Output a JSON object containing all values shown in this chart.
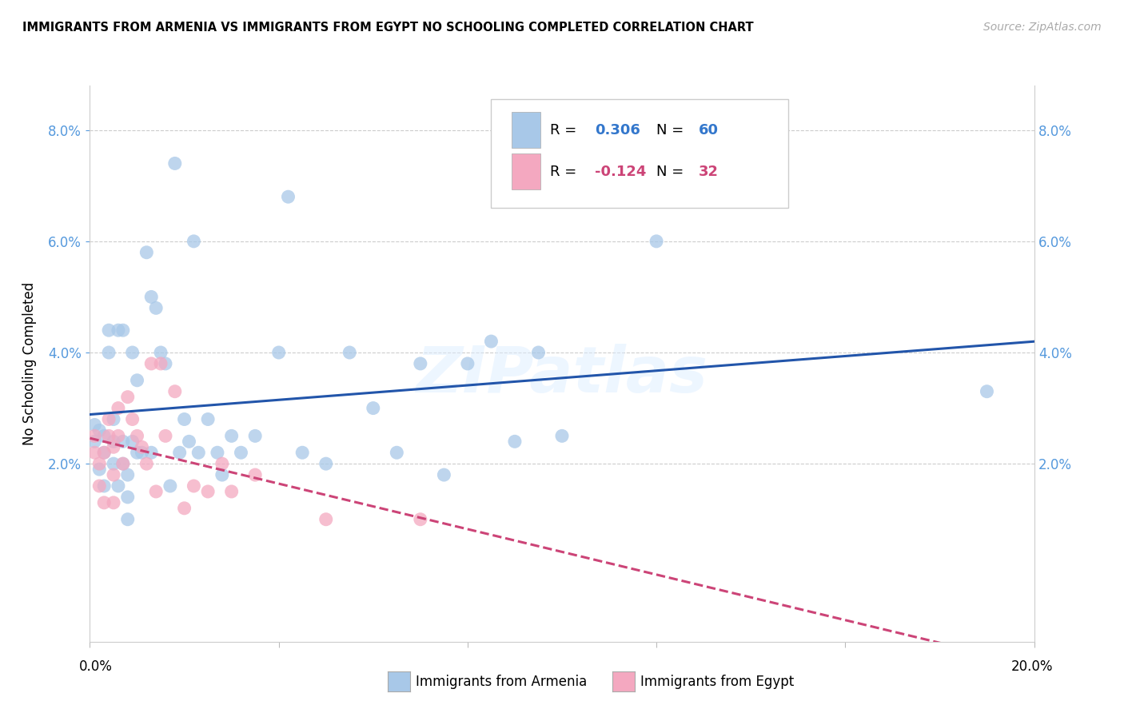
{
  "title": "IMMIGRANTS FROM ARMENIA VS IMMIGRANTS FROM EGYPT NO SCHOOLING COMPLETED CORRELATION CHART",
  "source": "Source: ZipAtlas.com",
  "ylabel": "No Schooling Completed",
  "legend_armenia": "Immigrants from Armenia",
  "legend_egypt": "Immigrants from Egypt",
  "R_armenia": 0.306,
  "N_armenia": 60,
  "R_egypt": -0.124,
  "N_egypt": 32,
  "xlim": [
    0.0,
    0.2
  ],
  "ylim": [
    -0.012,
    0.088
  ],
  "yticks": [
    0.02,
    0.04,
    0.06,
    0.08
  ],
  "ytick_labels": [
    "2.0%",
    "4.0%",
    "6.0%",
    "8.0%"
  ],
  "color_armenia": "#a8c8e8",
  "color_egypt": "#f4a8c0",
  "line_color_armenia": "#2255aa",
  "line_color_egypt": "#cc4477",
  "background": "#ffffff",
  "grid_color": "#cccccc",
  "armenia_x": [
    0.001,
    0.001,
    0.002,
    0.002,
    0.003,
    0.003,
    0.003,
    0.004,
    0.004,
    0.005,
    0.005,
    0.005,
    0.006,
    0.006,
    0.007,
    0.007,
    0.007,
    0.008,
    0.008,
    0.008,
    0.009,
    0.009,
    0.01,
    0.01,
    0.011,
    0.012,
    0.013,
    0.013,
    0.014,
    0.015,
    0.016,
    0.017,
    0.018,
    0.019,
    0.02,
    0.021,
    0.022,
    0.023,
    0.025,
    0.027,
    0.028,
    0.03,
    0.032,
    0.035,
    0.04,
    0.042,
    0.045,
    0.05,
    0.055,
    0.06,
    0.065,
    0.07,
    0.075,
    0.08,
    0.085,
    0.09,
    0.095,
    0.1,
    0.12,
    0.19
  ],
  "armenia_y": [
    0.027,
    0.024,
    0.026,
    0.019,
    0.025,
    0.022,
    0.016,
    0.044,
    0.04,
    0.028,
    0.024,
    0.02,
    0.044,
    0.016,
    0.044,
    0.024,
    0.02,
    0.01,
    0.014,
    0.018,
    0.04,
    0.024,
    0.035,
    0.022,
    0.022,
    0.058,
    0.022,
    0.05,
    0.048,
    0.04,
    0.038,
    0.016,
    0.074,
    0.022,
    0.028,
    0.024,
    0.06,
    0.022,
    0.028,
    0.022,
    0.018,
    0.025,
    0.022,
    0.025,
    0.04,
    0.068,
    0.022,
    0.02,
    0.04,
    0.03,
    0.022,
    0.038,
    0.018,
    0.038,
    0.042,
    0.024,
    0.04,
    0.025,
    0.06,
    0.033
  ],
  "egypt_x": [
    0.001,
    0.001,
    0.002,
    0.002,
    0.003,
    0.003,
    0.004,
    0.004,
    0.005,
    0.005,
    0.005,
    0.006,
    0.006,
    0.007,
    0.008,
    0.009,
    0.01,
    0.011,
    0.012,
    0.013,
    0.014,
    0.015,
    0.016,
    0.018,
    0.02,
    0.022,
    0.025,
    0.028,
    0.03,
    0.035,
    0.05,
    0.07
  ],
  "egypt_y": [
    0.025,
    0.022,
    0.02,
    0.016,
    0.022,
    0.013,
    0.025,
    0.028,
    0.023,
    0.018,
    0.013,
    0.03,
    0.025,
    0.02,
    0.032,
    0.028,
    0.025,
    0.023,
    0.02,
    0.038,
    0.015,
    0.038,
    0.025,
    0.033,
    0.012,
    0.016,
    0.015,
    0.02,
    0.015,
    0.018,
    0.01,
    0.01
  ]
}
